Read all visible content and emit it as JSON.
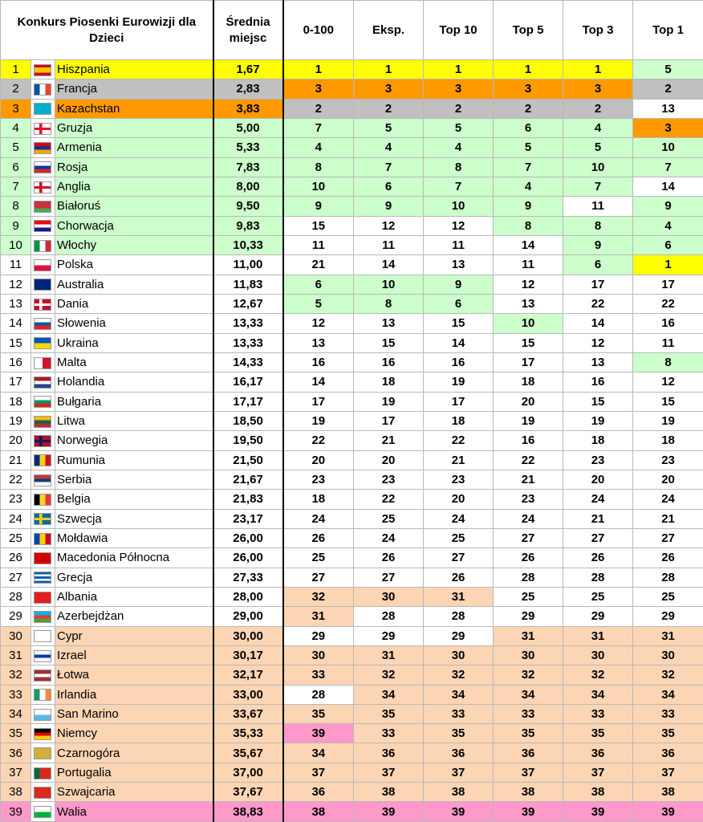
{
  "table": {
    "header": [
      "Konkurs Piosenki Eurowizji dla Dzieci",
      "Średnia miejsc",
      "0-100",
      "Eksp.",
      "Top 10",
      "Top 5",
      "Top 3",
      "Top 1"
    ],
    "rows": [
      {
        "rank": 1,
        "country": "Hiszpania",
        "average": "1,67",
        "scores": [
          1,
          1,
          1,
          1,
          1,
          5
        ],
        "row_color": "#ffff00",
        "score_colors": [
          "#ffff00",
          "#ffff00",
          "#ffff00",
          "#ffff00",
          "#ffff00",
          "#ccffcc"
        ]
      },
      {
        "rank": 2,
        "country": "Francja",
        "average": "2,83",
        "scores": [
          3,
          3,
          3,
          3,
          3,
          2
        ],
        "row_color": "#c0c0c0",
        "score_colors": [
          "#ff9900",
          "#ff9900",
          "#ff9900",
          "#ff9900",
          "#ff9900",
          "#c0c0c0"
        ]
      },
      {
        "rank": 3,
        "country": "Kazachstan",
        "average": "3,83",
        "scores": [
          2,
          2,
          2,
          2,
          2,
          13
        ],
        "row_color": "#ff9900",
        "score_colors": [
          "#c0c0c0",
          "#c0c0c0",
          "#c0c0c0",
          "#c0c0c0",
          "#c0c0c0",
          "#ffffff"
        ]
      },
      {
        "rank": 4,
        "country": "Gruzja",
        "average": "5,00",
        "scores": [
          7,
          5,
          5,
          6,
          4,
          3
        ],
        "row_color": "#ccffcc",
        "score_colors": [
          "#ccffcc",
          "#ccffcc",
          "#ccffcc",
          "#ccffcc",
          "#ccffcc",
          "#ff9900"
        ]
      },
      {
        "rank": 5,
        "country": "Armenia",
        "average": "5,33",
        "scores": [
          4,
          4,
          4,
          5,
          5,
          10
        ],
        "row_color": "#ccffcc",
        "score_colors": [
          "#ccffcc",
          "#ccffcc",
          "#ccffcc",
          "#ccffcc",
          "#ccffcc",
          "#ccffcc"
        ]
      },
      {
        "rank": 6,
        "country": "Rosja",
        "average": "7,83",
        "scores": [
          8,
          7,
          8,
          7,
          10,
          7
        ],
        "row_color": "#ccffcc",
        "score_colors": [
          "#ccffcc",
          "#ccffcc",
          "#ccffcc",
          "#ccffcc",
          "#ccffcc",
          "#ccffcc"
        ]
      },
      {
        "rank": 7,
        "country": "Anglia",
        "average": "8,00",
        "scores": [
          10,
          6,
          7,
          4,
          7,
          14
        ],
        "row_color": "#ccffcc",
        "score_colors": [
          "#ccffcc",
          "#ccffcc",
          "#ccffcc",
          "#ccffcc",
          "#ccffcc",
          "#ffffff"
        ]
      },
      {
        "rank": 8,
        "country": "Białoruś",
        "average": "9,50",
        "scores": [
          9,
          9,
          10,
          9,
          11,
          9
        ],
        "row_color": "#ccffcc",
        "score_colors": [
          "#ccffcc",
          "#ccffcc",
          "#ccffcc",
          "#ccffcc",
          "#ffffff",
          "#ccffcc"
        ]
      },
      {
        "rank": 9,
        "country": "Chorwacja",
        "average": "9,83",
        "scores": [
          15,
          12,
          12,
          8,
          8,
          4
        ],
        "row_color": "#ccffcc",
        "score_colors": [
          "#ffffff",
          "#ffffff",
          "#ffffff",
          "#ccffcc",
          "#ccffcc",
          "#ccffcc"
        ]
      },
      {
        "rank": 10,
        "country": "Włochy",
        "average": "10,33",
        "scores": [
          11,
          11,
          11,
          14,
          9,
          6
        ],
        "row_color": "#ccffcc",
        "score_colors": [
          "#ffffff",
          "#ffffff",
          "#ffffff",
          "#ffffff",
          "#ccffcc",
          "#ccffcc"
        ]
      },
      {
        "rank": 11,
        "country": "Polska",
        "average": "11,00",
        "scores": [
          21,
          14,
          13,
          11,
          6,
          1
        ],
        "row_color": "#ffffff",
        "score_colors": [
          "#ffffff",
          "#ffffff",
          "#ffffff",
          "#ffffff",
          "#ccffcc",
          "#ffff00"
        ]
      },
      {
        "rank": 12,
        "country": "Australia",
        "average": "11,83",
        "scores": [
          6,
          10,
          9,
          12,
          17,
          17
        ],
        "row_color": "#ffffff",
        "score_colors": [
          "#ccffcc",
          "#ccffcc",
          "#ccffcc",
          "#ffffff",
          "#ffffff",
          "#ffffff"
        ]
      },
      {
        "rank": 13,
        "country": "Dania",
        "average": "12,67",
        "scores": [
          5,
          8,
          6,
          13,
          22,
          22
        ],
        "row_color": "#ffffff",
        "score_colors": [
          "#ccffcc",
          "#ccffcc",
          "#ccffcc",
          "#ffffff",
          "#ffffff",
          "#ffffff"
        ]
      },
      {
        "rank": 14,
        "country": "Słowenia",
        "average": "13,33",
        "scores": [
          12,
          13,
          15,
          10,
          14,
          16
        ],
        "row_color": "#ffffff",
        "score_colors": [
          "#ffffff",
          "#ffffff",
          "#ffffff",
          "#ccffcc",
          "#ffffff",
          "#ffffff"
        ]
      },
      {
        "rank": 15,
        "country": "Ukraina",
        "average": "13,33",
        "scores": [
          13,
          15,
          14,
          15,
          12,
          11
        ],
        "row_color": "#ffffff",
        "score_colors": [
          "#ffffff",
          "#ffffff",
          "#ffffff",
          "#ffffff",
          "#ffffff",
          "#ffffff"
        ]
      },
      {
        "rank": 16,
        "country": "Malta",
        "average": "14,33",
        "scores": [
          16,
          16,
          16,
          17,
          13,
          8
        ],
        "row_color": "#ffffff",
        "score_colors": [
          "#ffffff",
          "#ffffff",
          "#ffffff",
          "#ffffff",
          "#ffffff",
          "#ccffcc"
        ]
      },
      {
        "rank": 17,
        "country": "Holandia",
        "average": "16,17",
        "scores": [
          14,
          18,
          19,
          18,
          16,
          12
        ],
        "row_color": "#ffffff",
        "score_colors": [
          "#ffffff",
          "#ffffff",
          "#ffffff",
          "#ffffff",
          "#ffffff",
          "#ffffff"
        ]
      },
      {
        "rank": 18,
        "country": "Bułgaria",
        "average": "17,17",
        "scores": [
          17,
          19,
          17,
          20,
          15,
          15
        ],
        "row_color": "#ffffff",
        "score_colors": [
          "#ffffff",
          "#ffffff",
          "#ffffff",
          "#ffffff",
          "#ffffff",
          "#ffffff"
        ]
      },
      {
        "rank": 19,
        "country": "Litwa",
        "average": "18,50",
        "scores": [
          19,
          17,
          18,
          19,
          19,
          19
        ],
        "row_color": "#ffffff",
        "score_colors": [
          "#ffffff",
          "#ffffff",
          "#ffffff",
          "#ffffff",
          "#ffffff",
          "#ffffff"
        ]
      },
      {
        "rank": 20,
        "country": "Norwegia",
        "average": "19,50",
        "scores": [
          22,
          21,
          22,
          16,
          18,
          18
        ],
        "row_color": "#ffffff",
        "score_colors": [
          "#ffffff",
          "#ffffff",
          "#ffffff",
          "#ffffff",
          "#ffffff",
          "#ffffff"
        ]
      },
      {
        "rank": 21,
        "country": "Rumunia",
        "average": "21,50",
        "scores": [
          20,
          20,
          21,
          22,
          23,
          23
        ],
        "row_color": "#ffffff",
        "score_colors": [
          "#ffffff",
          "#ffffff",
          "#ffffff",
          "#ffffff",
          "#ffffff",
          "#ffffff"
        ]
      },
      {
        "rank": 22,
        "country": "Serbia",
        "average": "21,67",
        "scores": [
          23,
          23,
          23,
          21,
          20,
          20
        ],
        "row_color": "#ffffff",
        "score_colors": [
          "#ffffff",
          "#ffffff",
          "#ffffff",
          "#ffffff",
          "#ffffff",
          "#ffffff"
        ]
      },
      {
        "rank": 23,
        "country": "Belgia",
        "average": "21,83",
        "scores": [
          18,
          22,
          20,
          23,
          24,
          24
        ],
        "row_color": "#ffffff",
        "score_colors": [
          "#ffffff",
          "#ffffff",
          "#ffffff",
          "#ffffff",
          "#ffffff",
          "#ffffff"
        ]
      },
      {
        "rank": 24,
        "country": "Szwecja",
        "average": "23,17",
        "scores": [
          24,
          25,
          24,
          24,
          21,
          21
        ],
        "row_color": "#ffffff",
        "score_colors": [
          "#ffffff",
          "#ffffff",
          "#ffffff",
          "#ffffff",
          "#ffffff",
          "#ffffff"
        ]
      },
      {
        "rank": 25,
        "country": "Mołdawia",
        "average": "26,00",
        "scores": [
          26,
          24,
          25,
          27,
          27,
          27
        ],
        "row_color": "#ffffff",
        "score_colors": [
          "#ffffff",
          "#ffffff",
          "#ffffff",
          "#ffffff",
          "#ffffff",
          "#ffffff"
        ]
      },
      {
        "rank": 26,
        "country": "Macedonia Północna",
        "average": "26,00",
        "scores": [
          25,
          26,
          27,
          26,
          26,
          26
        ],
        "row_color": "#ffffff",
        "score_colors": [
          "#ffffff",
          "#ffffff",
          "#ffffff",
          "#ffffff",
          "#ffffff",
          "#ffffff"
        ]
      },
      {
        "rank": 27,
        "country": "Grecja",
        "average": "27,33",
        "scores": [
          27,
          27,
          26,
          28,
          28,
          28
        ],
        "row_color": "#ffffff",
        "score_colors": [
          "#ffffff",
          "#ffffff",
          "#ffffff",
          "#ffffff",
          "#ffffff",
          "#ffffff"
        ]
      },
      {
        "rank": 28,
        "country": "Albania",
        "average": "28,00",
        "scores": [
          32,
          30,
          31,
          25,
          25,
          25
        ],
        "row_color": "#ffffff",
        "score_colors": [
          "#fcd5b4",
          "#fcd5b4",
          "#fcd5b4",
          "#ffffff",
          "#ffffff",
          "#ffffff"
        ]
      },
      {
        "rank": 29,
        "country": "Azerbejdżan",
        "average": "29,00",
        "scores": [
          31,
          28,
          28,
          29,
          29,
          29
        ],
        "row_color": "#ffffff",
        "score_colors": [
          "#fcd5b4",
          "#ffffff",
          "#ffffff",
          "#ffffff",
          "#ffffff",
          "#ffffff"
        ]
      },
      {
        "rank": 30,
        "country": "Cypr",
        "average": "30,00",
        "scores": [
          29,
          29,
          29,
          31,
          31,
          31
        ],
        "row_color": "#fcd5b4",
        "score_colors": [
          "#ffffff",
          "#ffffff",
          "#ffffff",
          "#fcd5b4",
          "#fcd5b4",
          "#fcd5b4"
        ]
      },
      {
        "rank": 31,
        "country": "Izrael",
        "average": "30,17",
        "scores": [
          30,
          31,
          30,
          30,
          30,
          30
        ],
        "row_color": "#fcd5b4",
        "score_colors": [
          "#fcd5b4",
          "#fcd5b4",
          "#fcd5b4",
          "#fcd5b4",
          "#fcd5b4",
          "#fcd5b4"
        ]
      },
      {
        "rank": 32,
        "country": "Łotwa",
        "average": "32,17",
        "scores": [
          33,
          32,
          32,
          32,
          32,
          32
        ],
        "row_color": "#fcd5b4",
        "score_colors": [
          "#fcd5b4",
          "#fcd5b4",
          "#fcd5b4",
          "#fcd5b4",
          "#fcd5b4",
          "#fcd5b4"
        ]
      },
      {
        "rank": 33,
        "country": "Irlandia",
        "average": "33,00",
        "scores": [
          28,
          34,
          34,
          34,
          34,
          34
        ],
        "row_color": "#fcd5b4",
        "score_colors": [
          "#ffffff",
          "#fcd5b4",
          "#fcd5b4",
          "#fcd5b4",
          "#fcd5b4",
          "#fcd5b4"
        ]
      },
      {
        "rank": 34,
        "country": "San Marino",
        "average": "33,67",
        "scores": [
          35,
          35,
          33,
          33,
          33,
          33
        ],
        "row_color": "#fcd5b4",
        "score_colors": [
          "#fcd5b4",
          "#fcd5b4",
          "#fcd5b4",
          "#fcd5b4",
          "#fcd5b4",
          "#fcd5b4"
        ]
      },
      {
        "rank": 35,
        "country": "Niemcy",
        "average": "35,33",
        "scores": [
          39,
          33,
          35,
          35,
          35,
          35
        ],
        "row_color": "#fcd5b4",
        "score_colors": [
          "#ff99cc",
          "#fcd5b4",
          "#fcd5b4",
          "#fcd5b4",
          "#fcd5b4",
          "#fcd5b4"
        ]
      },
      {
        "rank": 36,
        "country": "Czarnogóra",
        "average": "35,67",
        "scores": [
          34,
          36,
          36,
          36,
          36,
          36
        ],
        "row_color": "#fcd5b4",
        "score_colors": [
          "#fcd5b4",
          "#fcd5b4",
          "#fcd5b4",
          "#fcd5b4",
          "#fcd5b4",
          "#fcd5b4"
        ]
      },
      {
        "rank": 37,
        "country": "Portugalia",
        "average": "37,00",
        "scores": [
          37,
          37,
          37,
          37,
          37,
          37
        ],
        "row_color": "#fcd5b4",
        "score_colors": [
          "#fcd5b4",
          "#fcd5b4",
          "#fcd5b4",
          "#fcd5b4",
          "#fcd5b4",
          "#fcd5b4"
        ]
      },
      {
        "rank": 38,
        "country": "Szwajcaria",
        "average": "37,67",
        "scores": [
          36,
          38,
          38,
          38,
          38,
          38
        ],
        "row_color": "#fcd5b4",
        "score_colors": [
          "#fcd5b4",
          "#fcd5b4",
          "#fcd5b4",
          "#fcd5b4",
          "#fcd5b4",
          "#fcd5b4"
        ]
      },
      {
        "rank": 39,
        "country": "Walia",
        "average": "38,83",
        "scores": [
          38,
          39,
          39,
          39,
          39,
          39
        ],
        "row_color": "#ff99cc",
        "score_colors": [
          "#ff99cc",
          "#ff99cc",
          "#ff99cc",
          "#ff99cc",
          "#ff99cc",
          "#ff99cc"
        ]
      }
    ]
  }
}
